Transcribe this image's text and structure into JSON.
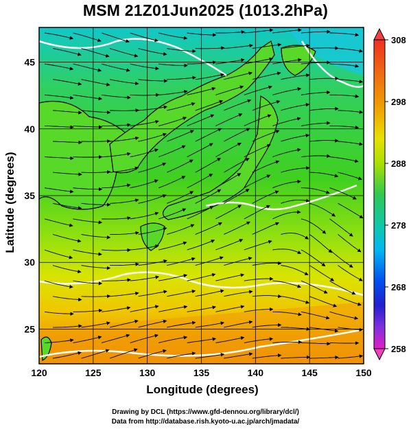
{
  "title": "MSM 21Z01Jun2025 (1013.2hPa)",
  "map": {
    "xlabel": "Longitude (degrees)",
    "ylabel": "Latitude  (degrees)",
    "lon_range": [
      120,
      150
    ],
    "lat_range": [
      22.4,
      47.6
    ],
    "lon_ticks": [
      "120",
      "125",
      "130",
      "135",
      "140",
      "145",
      "150"
    ],
    "lat_ticks": [
      "25",
      "30",
      "35",
      "40",
      "45"
    ],
    "grid": true,
    "field": "surface temperature with streamlines"
  },
  "colorbar": {
    "ticks": [
      "308",
      "298",
      "288",
      "278",
      "268",
      "258"
    ],
    "min": 258,
    "max": 308,
    "colors": [
      "#e020c0",
      "#9030e0",
      "#2020e0",
      "#0070f0",
      "#00c8e0",
      "#10c870",
      "#38d020",
      "#b8e000",
      "#f0e000",
      "#f0a000",
      "#f07010",
      "#f03020"
    ]
  },
  "credits": {
    "line1": "Drawing by DCL (https://www.gfd-dennou.org/library/dcl/)",
    "line2": "Data from http://database.rish.kyoto-u.ac.jp/arch/jmadata/"
  }
}
